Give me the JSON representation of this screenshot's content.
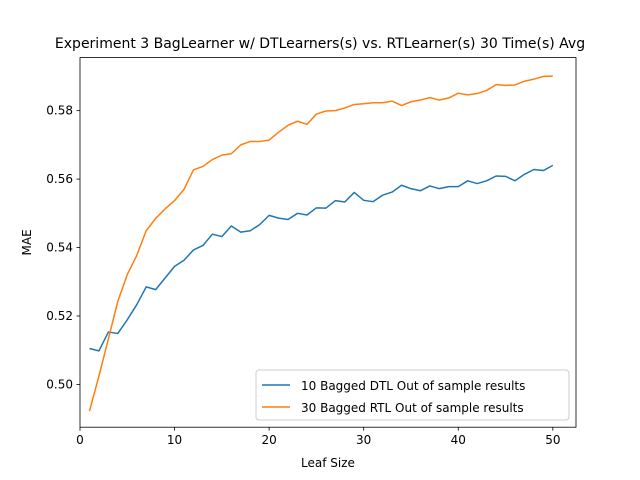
{
  "chart_data": {
    "type": "line",
    "title": "Experiment 3 BagLearner w/ DTLearners(s) vs. RTLearner(s) 30 Time(s) Avg",
    "xlabel": "Leaf Size",
    "ylabel": "MAE",
    "xlim": [
      0,
      52.45
    ],
    "ylim": [
      0.4875,
      0.5955
    ],
    "xticks": [
      0,
      10,
      20,
      30,
      40,
      50
    ],
    "xtick_labels": [
      "0",
      "10",
      "20",
      "30",
      "40",
      "50"
    ],
    "yticks": [
      0.5,
      0.52,
      0.54,
      0.56,
      0.58
    ],
    "ytick_labels": [
      "0.50",
      "0.52",
      "0.54",
      "0.56",
      "0.58"
    ],
    "grid": false,
    "legend_position": "lower-right",
    "x": [
      1,
      2,
      3,
      4,
      5,
      6,
      7,
      8,
      9,
      10,
      11,
      12,
      13,
      14,
      15,
      16,
      17,
      18,
      19,
      20,
      21,
      22,
      23,
      24,
      25,
      26,
      27,
      28,
      29,
      30,
      31,
      32,
      33,
      34,
      35,
      36,
      37,
      38,
      39,
      40,
      41,
      42,
      43,
      44,
      45,
      46,
      47,
      48,
      49,
      50
    ],
    "series": [
      {
        "name": "10 Bagged DTL Out of sample results",
        "color": "#1f77b4",
        "values": [
          0.5105,
          0.5098,
          0.5153,
          0.5149,
          0.5189,
          0.5233,
          0.5285,
          0.5277,
          0.5311,
          0.5345,
          0.5363,
          0.5393,
          0.5406,
          0.5439,
          0.5432,
          0.5463,
          0.5445,
          0.5449,
          0.5467,
          0.5494,
          0.5486,
          0.5482,
          0.55,
          0.5495,
          0.5516,
          0.5515,
          0.5537,
          0.5533,
          0.5561,
          0.5538,
          0.5534,
          0.5553,
          0.5562,
          0.5582,
          0.5572,
          0.5566,
          0.558,
          0.5572,
          0.5578,
          0.5578,
          0.5595,
          0.5587,
          0.5595,
          0.5609,
          0.5608,
          0.5595,
          0.5614,
          0.5628,
          0.5625,
          0.564
        ]
      },
      {
        "name": "30 Bagged RTL Out of sample results",
        "color": "#ff7f0e",
        "values": [
          0.4922,
          0.5024,
          0.5133,
          0.5243,
          0.5321,
          0.5377,
          0.5449,
          0.5485,
          0.5513,
          0.5537,
          0.557,
          0.5627,
          0.5637,
          0.5657,
          0.567,
          0.5674,
          0.57,
          0.571,
          0.571,
          0.5714,
          0.5737,
          0.5757,
          0.5769,
          0.576,
          0.579,
          0.5799,
          0.58,
          0.5808,
          0.5818,
          0.582,
          0.5823,
          0.5823,
          0.5828,
          0.5815,
          0.5826,
          0.5831,
          0.5838,
          0.5831,
          0.5837,
          0.5851,
          0.5846,
          0.585,
          0.5859,
          0.5876,
          0.5874,
          0.5875,
          0.5886,
          0.5892,
          0.59,
          0.5901
        ]
      }
    ]
  }
}
